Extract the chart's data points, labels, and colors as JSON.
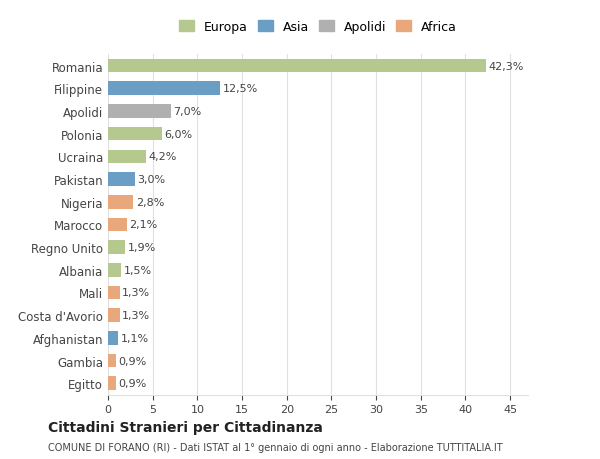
{
  "categories": [
    "Romania",
    "Filippine",
    "Apolidi",
    "Polonia",
    "Ucraina",
    "Pakistan",
    "Nigeria",
    "Marocco",
    "Regno Unito",
    "Albania",
    "Mali",
    "Costa d'Avorio",
    "Afghanistan",
    "Gambia",
    "Egitto"
  ],
  "values": [
    42.3,
    12.5,
    7.0,
    6.0,
    4.2,
    3.0,
    2.8,
    2.1,
    1.9,
    1.5,
    1.3,
    1.3,
    1.1,
    0.9,
    0.9
  ],
  "labels": [
    "42,3%",
    "12,5%",
    "7,0%",
    "6,0%",
    "4,2%",
    "3,0%",
    "2,8%",
    "2,1%",
    "1,9%",
    "1,5%",
    "1,3%",
    "1,3%",
    "1,1%",
    "0,9%",
    "0,9%"
  ],
  "colors": [
    "#b5c98e",
    "#6a9ec5",
    "#b0b0b0",
    "#b5c98e",
    "#b5c98e",
    "#6a9ec5",
    "#e8a87c",
    "#e8a87c",
    "#b5c98e",
    "#b5c98e",
    "#e8a87c",
    "#e8a87c",
    "#6a9ec5",
    "#e8a87c",
    "#e8a87c"
  ],
  "legend_labels": [
    "Europa",
    "Asia",
    "Apolidi",
    "Africa"
  ],
  "legend_colors": [
    "#b5c98e",
    "#6a9ec5",
    "#b0b0b0",
    "#e8a87c"
  ],
  "title": "Cittadini Stranieri per Cittadinanza",
  "subtitle": "COMUNE DI FORANO (RI) - Dati ISTAT al 1° gennaio di ogni anno - Elaborazione TUTTITALIA.IT",
  "xlim": [
    0,
    47
  ],
  "background_color": "#ffffff",
  "grid_color": "#e0e0e0"
}
